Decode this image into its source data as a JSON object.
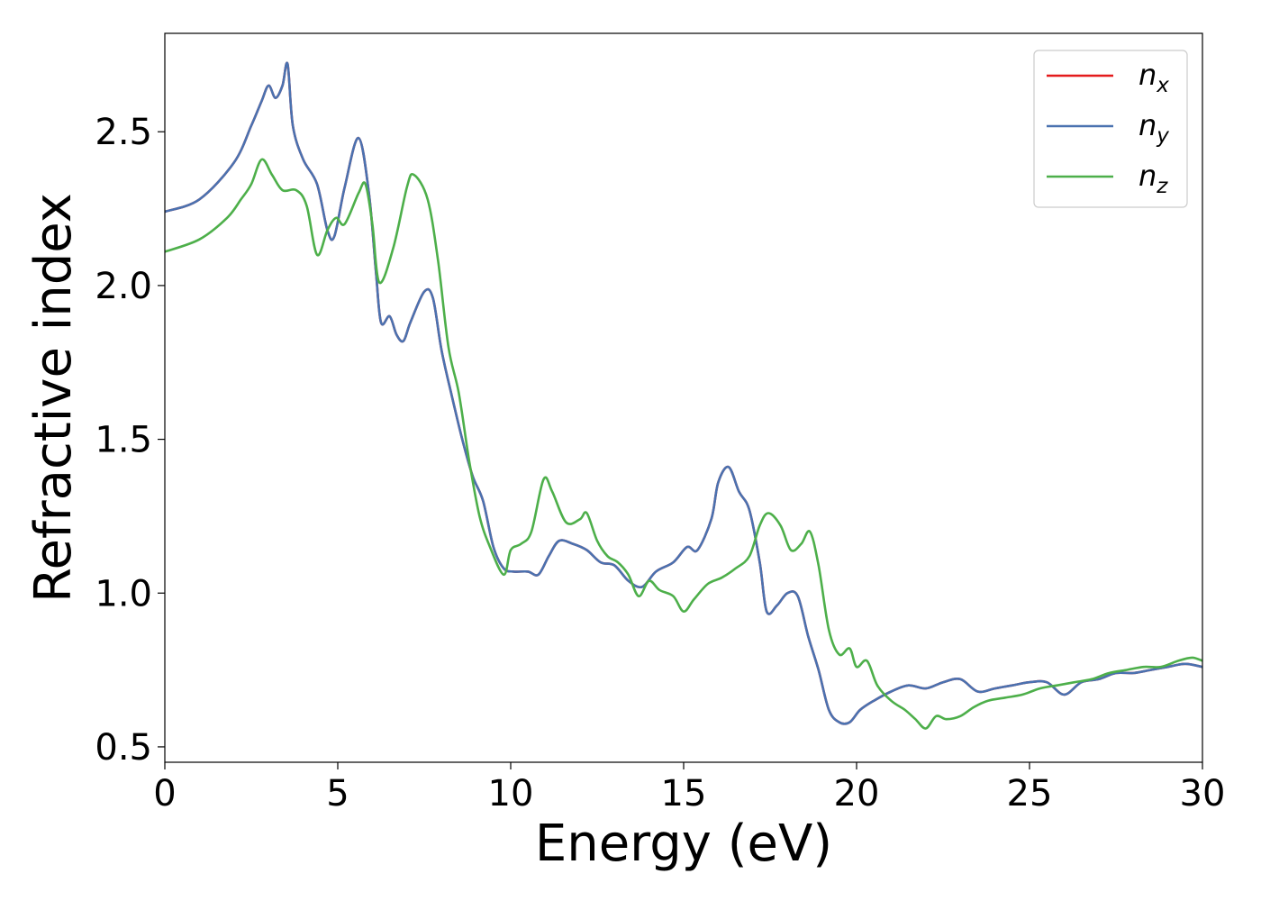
{
  "chart_data": {
    "type": "line",
    "title": "",
    "xlabel": "Energy (eV)",
    "ylabel": "Refractive index",
    "xlim": [
      0,
      30
    ],
    "ylim": [
      0.45,
      2.82
    ],
    "xticks": [
      0,
      5,
      10,
      15,
      20,
      25,
      30
    ],
    "xtick_labels": [
      "0",
      "5",
      "10",
      "15",
      "20",
      "25",
      "30"
    ],
    "yticks": [
      0.5,
      1.0,
      1.5,
      2.0,
      2.5
    ],
    "ytick_labels": [
      "0.5",
      "1.0",
      "1.5",
      "2.0",
      "2.5"
    ],
    "grid": false,
    "legend_position": "top-right",
    "series": [
      {
        "name": "n",
        "subscript": "x",
        "color": "#e41a1c",
        "x": [
          0,
          1,
          2,
          2.5,
          2.8,
          3.0,
          3.2,
          3.4,
          3.55,
          3.7,
          4.0,
          4.4,
          4.7,
          4.9,
          5.2,
          5.6,
          5.9,
          6.1,
          6.25,
          6.5,
          6.7,
          6.9,
          7.1,
          7.5,
          7.75,
          8.0,
          8.3,
          8.6,
          8.9,
          9.2,
          9.5,
          9.8,
          10.1,
          10.5,
          10.8,
          11.1,
          11.4,
          11.8,
          12.2,
          12.6,
          13.0,
          13.4,
          13.8,
          14.2,
          14.7,
          15.1,
          15.4,
          15.8,
          16.0,
          16.3,
          16.6,
          16.9,
          17.2,
          17.4,
          17.7,
          18.0,
          18.3,
          18.6,
          18.9,
          19.2,
          19.5,
          19.8,
          20.1,
          20.5,
          21.0,
          21.5,
          22.0,
          22.5,
          23.0,
          23.5,
          24.0,
          24.5,
          25.0,
          25.5,
          26.0,
          26.5,
          27.0,
          27.5,
          28.0,
          28.5,
          29.0,
          29.5,
          30.0
        ],
        "y": [
          2.24,
          2.28,
          2.4,
          2.52,
          2.6,
          2.65,
          2.61,
          2.65,
          2.72,
          2.52,
          2.41,
          2.33,
          2.18,
          2.16,
          2.32,
          2.48,
          2.3,
          2.05,
          1.88,
          1.9,
          1.84,
          1.82,
          1.88,
          1.98,
          1.96,
          1.79,
          1.64,
          1.5,
          1.38,
          1.3,
          1.15,
          1.08,
          1.07,
          1.07,
          1.06,
          1.12,
          1.17,
          1.16,
          1.14,
          1.1,
          1.09,
          1.04,
          1.02,
          1.07,
          1.1,
          1.15,
          1.14,
          1.24,
          1.36,
          1.41,
          1.33,
          1.27,
          1.1,
          0.94,
          0.96,
          1.0,
          0.99,
          0.86,
          0.75,
          0.62,
          0.58,
          0.58,
          0.62,
          0.65,
          0.68,
          0.7,
          0.69,
          0.71,
          0.72,
          0.68,
          0.69,
          0.7,
          0.71,
          0.71,
          0.67,
          0.71,
          0.72,
          0.74,
          0.74,
          0.75,
          0.76,
          0.77,
          0.76
        ]
      },
      {
        "name": "n",
        "subscript": "y",
        "color": "#4a72b0",
        "x": [
          0,
          1,
          2,
          2.5,
          2.8,
          3.0,
          3.2,
          3.4,
          3.55,
          3.7,
          4.0,
          4.4,
          4.7,
          4.9,
          5.2,
          5.6,
          5.9,
          6.1,
          6.25,
          6.5,
          6.7,
          6.9,
          7.1,
          7.5,
          7.75,
          8.0,
          8.3,
          8.6,
          8.9,
          9.2,
          9.5,
          9.8,
          10.1,
          10.5,
          10.8,
          11.1,
          11.4,
          11.8,
          12.2,
          12.6,
          13.0,
          13.4,
          13.8,
          14.2,
          14.7,
          15.1,
          15.4,
          15.8,
          16.0,
          16.3,
          16.6,
          16.9,
          17.2,
          17.4,
          17.7,
          18.0,
          18.3,
          18.6,
          18.9,
          19.2,
          19.5,
          19.8,
          20.1,
          20.5,
          21.0,
          21.5,
          22.0,
          22.5,
          23.0,
          23.5,
          24.0,
          24.5,
          25.0,
          25.5,
          26.0,
          26.5,
          27.0,
          27.5,
          28.0,
          28.5,
          29.0,
          29.5,
          30.0
        ],
        "y": [
          2.24,
          2.28,
          2.4,
          2.52,
          2.6,
          2.65,
          2.61,
          2.65,
          2.72,
          2.52,
          2.41,
          2.33,
          2.18,
          2.16,
          2.32,
          2.48,
          2.3,
          2.05,
          1.88,
          1.9,
          1.84,
          1.82,
          1.88,
          1.98,
          1.96,
          1.79,
          1.64,
          1.5,
          1.38,
          1.3,
          1.15,
          1.08,
          1.07,
          1.07,
          1.06,
          1.12,
          1.17,
          1.16,
          1.14,
          1.1,
          1.09,
          1.04,
          1.02,
          1.07,
          1.1,
          1.15,
          1.14,
          1.24,
          1.36,
          1.41,
          1.33,
          1.27,
          1.1,
          0.94,
          0.96,
          1.0,
          0.99,
          0.86,
          0.75,
          0.62,
          0.58,
          0.58,
          0.62,
          0.65,
          0.68,
          0.7,
          0.69,
          0.71,
          0.72,
          0.68,
          0.69,
          0.7,
          0.71,
          0.71,
          0.67,
          0.71,
          0.72,
          0.74,
          0.74,
          0.75,
          0.76,
          0.77,
          0.76
        ]
      },
      {
        "name": "n",
        "subscript": "z",
        "color": "#4daf4a",
        "x": [
          0,
          1,
          1.8,
          2.2,
          2.5,
          2.8,
          3.1,
          3.4,
          3.8,
          4.1,
          4.4,
          4.7,
          4.95,
          5.2,
          5.6,
          5.8,
          6.0,
          6.2,
          6.6,
          7.0,
          7.2,
          7.6,
          7.9,
          8.2,
          8.5,
          8.8,
          9.1,
          9.4,
          9.8,
          10.0,
          10.3,
          10.6,
          10.95,
          11.2,
          11.6,
          12.0,
          12.2,
          12.5,
          12.8,
          13.1,
          13.4,
          13.7,
          14.0,
          14.3,
          14.7,
          15.0,
          15.3,
          15.7,
          16.1,
          16.5,
          16.9,
          17.2,
          17.45,
          17.8,
          18.1,
          18.4,
          18.65,
          18.9,
          19.2,
          19.5,
          19.8,
          20.0,
          20.3,
          20.6,
          21.0,
          21.4,
          21.7,
          22.0,
          22.3,
          22.6,
          23.0,
          23.4,
          23.8,
          24.3,
          24.8,
          25.3,
          25.8,
          26.3,
          26.8,
          27.3,
          27.8,
          28.3,
          28.8,
          29.3,
          29.7,
          30.0
        ],
        "y": [
          2.11,
          2.15,
          2.22,
          2.28,
          2.33,
          2.41,
          2.36,
          2.31,
          2.31,
          2.26,
          2.1,
          2.18,
          2.22,
          2.2,
          2.3,
          2.33,
          2.2,
          2.01,
          2.12,
          2.32,
          2.36,
          2.28,
          2.08,
          1.8,
          1.65,
          1.43,
          1.25,
          1.15,
          1.06,
          1.14,
          1.16,
          1.2,
          1.37,
          1.33,
          1.23,
          1.24,
          1.26,
          1.17,
          1.12,
          1.1,
          1.06,
          0.99,
          1.04,
          1.01,
          0.99,
          0.94,
          0.98,
          1.03,
          1.05,
          1.08,
          1.12,
          1.22,
          1.26,
          1.22,
          1.14,
          1.16,
          1.2,
          1.09,
          0.88,
          0.8,
          0.82,
          0.76,
          0.78,
          0.7,
          0.65,
          0.62,
          0.59,
          0.56,
          0.6,
          0.59,
          0.6,
          0.63,
          0.65,
          0.66,
          0.67,
          0.69,
          0.7,
          0.71,
          0.72,
          0.74,
          0.75,
          0.76,
          0.76,
          0.78,
          0.79,
          0.78
        ]
      }
    ]
  }
}
